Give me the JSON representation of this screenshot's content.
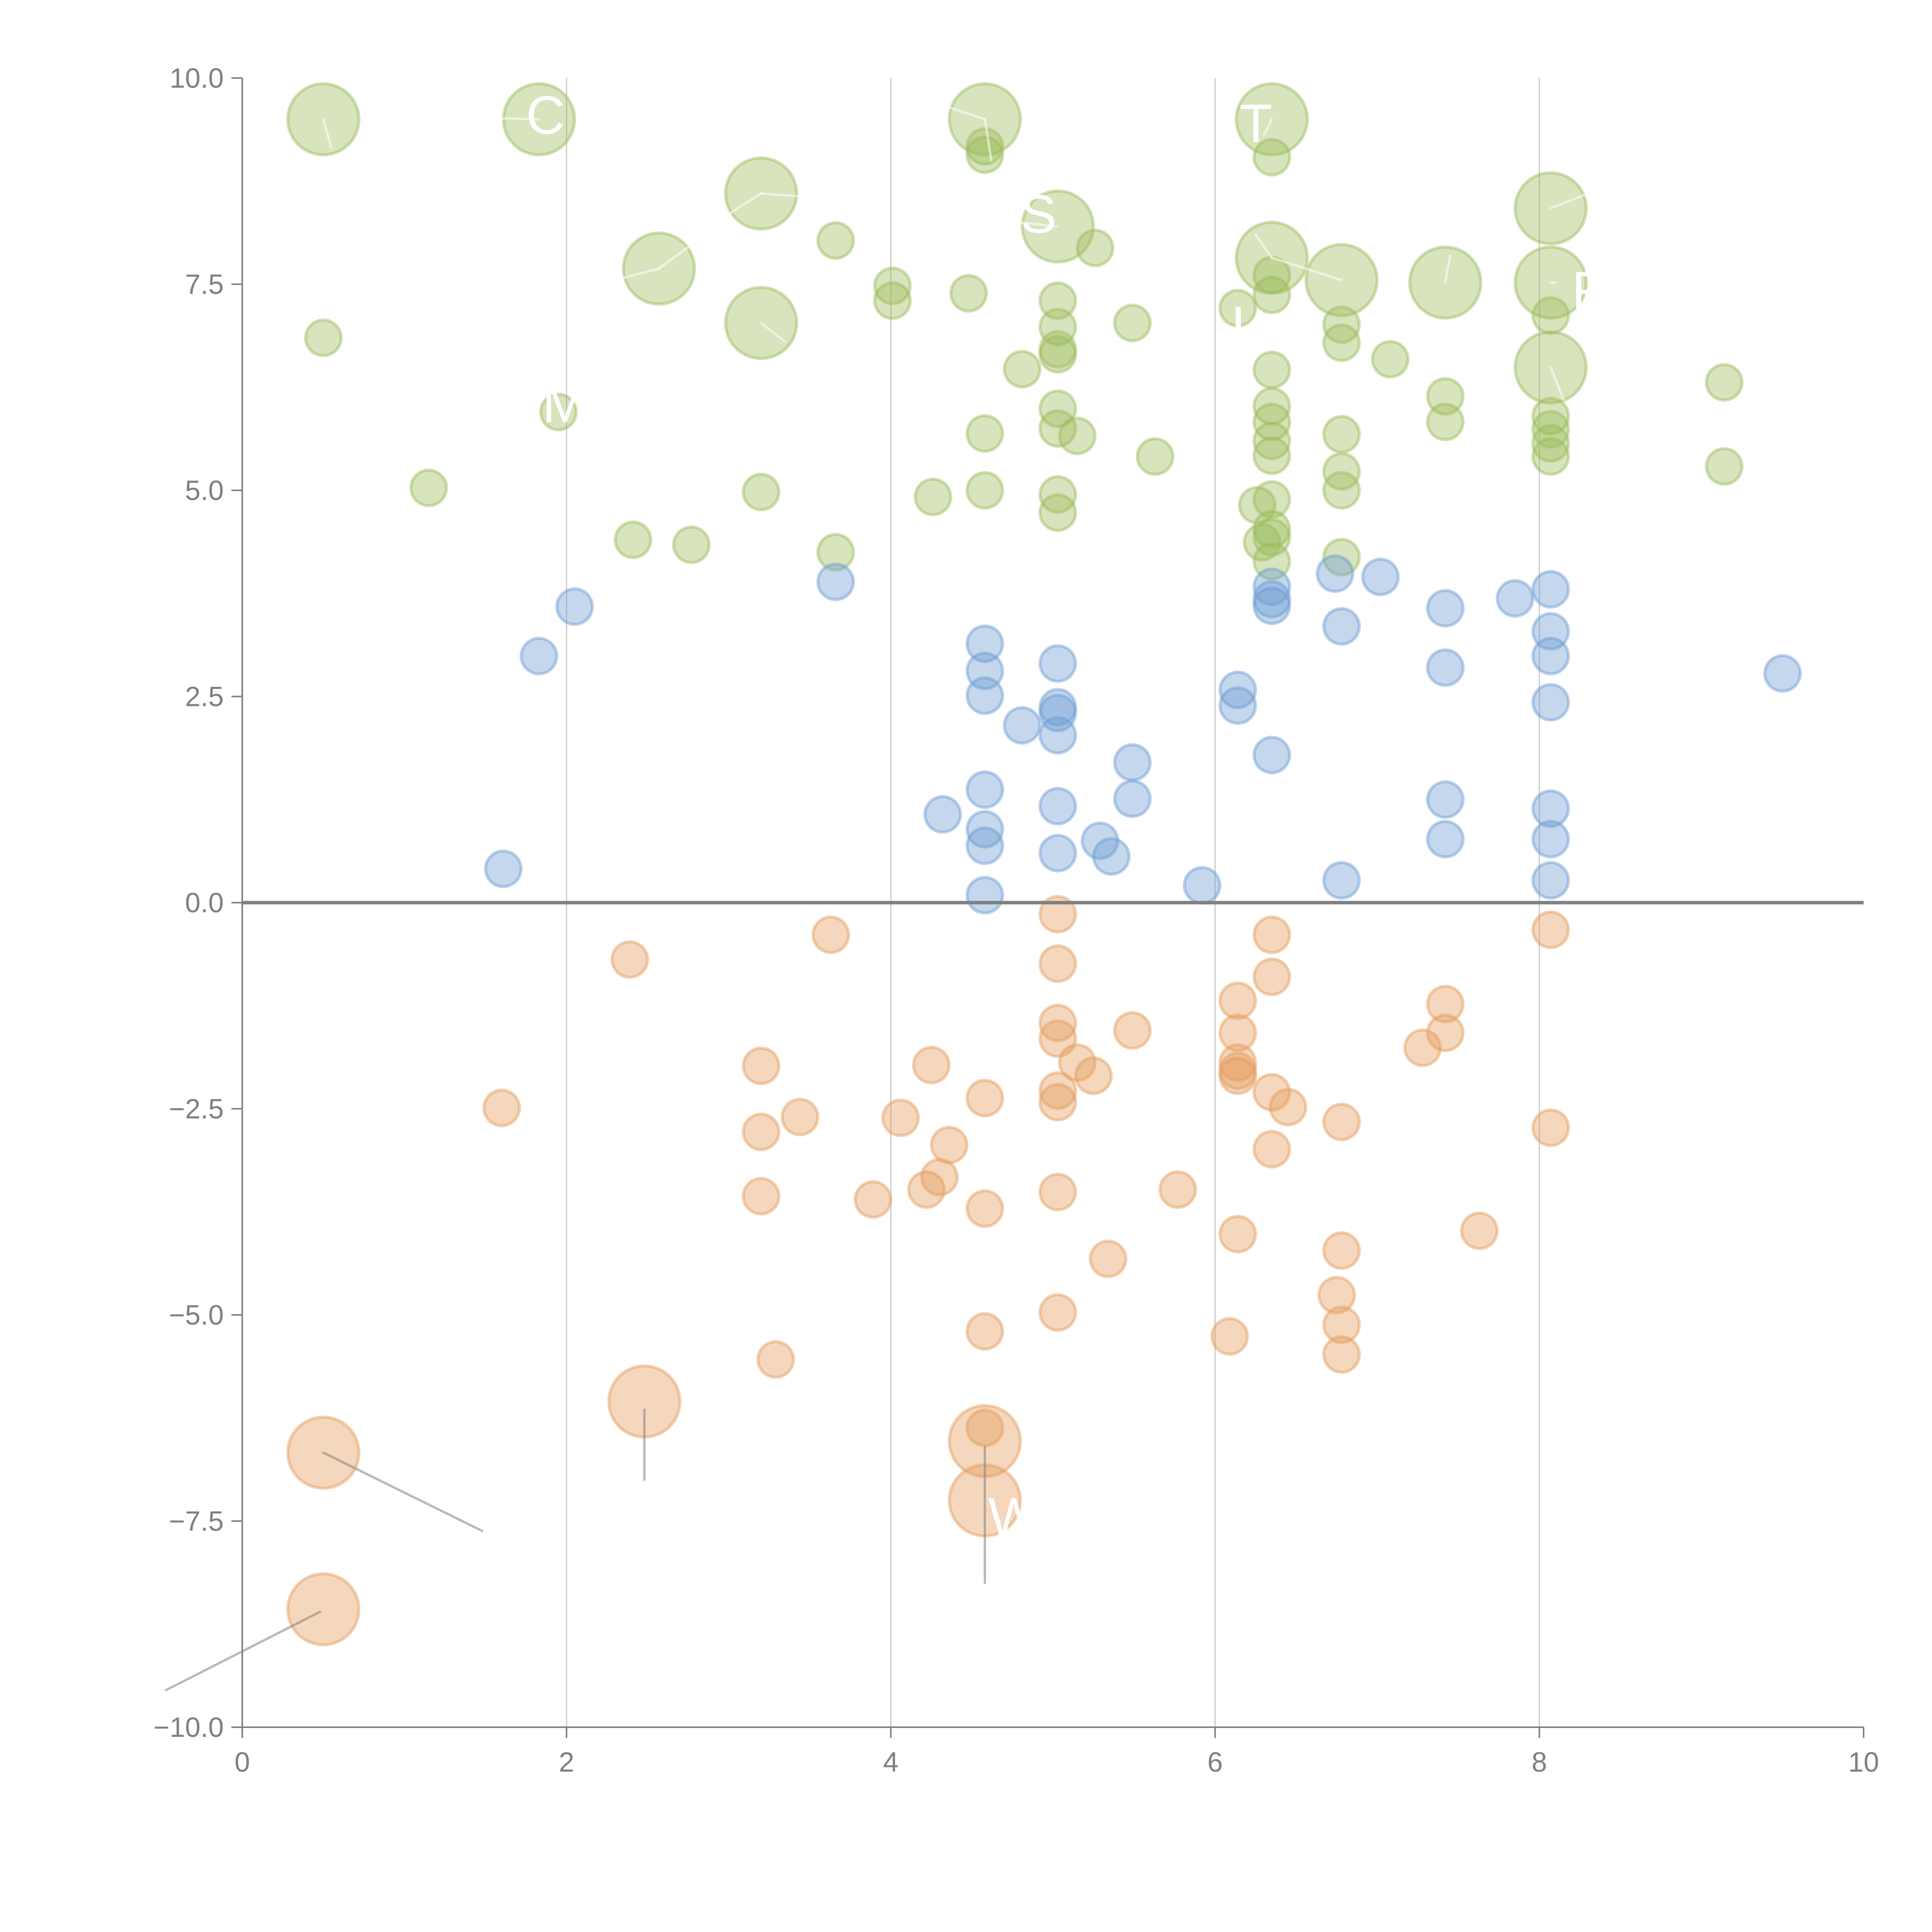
{
  "chart_data": {
    "type": "scatter",
    "title": "",
    "xlabel": "",
    "ylabel": "",
    "xlim": [
      0,
      10
    ],
    "ylim": [
      -10,
      10
    ],
    "x_ticks": [
      0,
      2,
      4,
      6,
      8,
      10
    ],
    "x_tick_labels": [
      "0",
      "2",
      "4",
      "6",
      "8",
      "10"
    ],
    "y_ticks": [
      10,
      7.5,
      5,
      2.5,
      0,
      -2.5,
      -5,
      -7.5,
      -10
    ],
    "y_tick_labels": [
      "10.0",
      "7.5",
      "5.0",
      "2.5",
      "0.0",
      "−2.5",
      "−5.0",
      "−7.5",
      "−10.0"
    ],
    "grid": {
      "vertical_at": [
        2,
        4,
        6,
        8
      ],
      "horizontal_reference": 0
    },
    "legend": "none",
    "series": [
      {
        "name": "green",
        "color": "#9bbb59",
        "points": [
          {
            "x": 0.5,
            "y": 9.5,
            "size": "large"
          },
          {
            "x": 1.83,
            "y": 9.5,
            "size": "large"
          },
          {
            "x": 4.58,
            "y": 9.5,
            "size": "large"
          },
          {
            "x": 6.35,
            "y": 9.5,
            "size": "large"
          },
          {
            "x": 3.2,
            "y": 8.6,
            "size": "large"
          },
          {
            "x": 5.03,
            "y": 8.2,
            "size": "large"
          },
          {
            "x": 8.07,
            "y": 8.42,
            "size": "large"
          },
          {
            "x": 2.57,
            "y": 7.69,
            "size": "large"
          },
          {
            "x": 6.35,
            "y": 7.82,
            "size": "large"
          },
          {
            "x": 6.78,
            "y": 7.55,
            "size": "large"
          },
          {
            "x": 7.42,
            "y": 7.52,
            "size": "large"
          },
          {
            "x": 8.07,
            "y": 7.52,
            "size": "large"
          },
          {
            "x": 3.2,
            "y": 7.03,
            "size": "large"
          },
          {
            "x": 8.07,
            "y": 6.49,
            "size": "large"
          },
          {
            "x": 0.5,
            "y": 6.85
          },
          {
            "x": 1.15,
            "y": 5.03
          },
          {
            "x": 1.95,
            "y": 5.95
          },
          {
            "x": 2.41,
            "y": 4.4
          },
          {
            "x": 2.77,
            "y": 4.34
          },
          {
            "x": 3.2,
            "y": 4.98
          },
          {
            "x": 3.66,
            "y": 8.03
          },
          {
            "x": 3.66,
            "y": 4.25
          },
          {
            "x": 4.01,
            "y": 7.48
          },
          {
            "x": 4.01,
            "y": 7.3
          },
          {
            "x": 4.26,
            "y": 4.92
          },
          {
            "x": 4.48,
            "y": 7.39
          },
          {
            "x": 4.58,
            "y": 9.17
          },
          {
            "x": 4.58,
            "y": 9.07
          },
          {
            "x": 4.58,
            "y": 5.69
          },
          {
            "x": 4.58,
            "y": 5.0
          },
          {
            "x": 4.81,
            "y": 6.47
          },
          {
            "x": 5.03,
            "y": 7.3
          },
          {
            "x": 5.03,
            "y": 6.98
          },
          {
            "x": 5.03,
            "y": 6.71
          },
          {
            "x": 5.03,
            "y": 6.65
          },
          {
            "x": 5.03,
            "y": 5.99
          },
          {
            "x": 5.03,
            "y": 5.75
          },
          {
            "x": 5.03,
            "y": 4.95
          },
          {
            "x": 5.03,
            "y": 4.73
          },
          {
            "x": 5.15,
            "y": 5.66
          },
          {
            "x": 5.26,
            "y": 7.94
          },
          {
            "x": 5.49,
            "y": 7.03
          },
          {
            "x": 5.63,
            "y": 5.41
          },
          {
            "x": 6.14,
            "y": 7.21
          },
          {
            "x": 6.26,
            "y": 4.82
          },
          {
            "x": 6.29,
            "y": 4.37
          },
          {
            "x": 6.35,
            "y": 9.04
          },
          {
            "x": 6.35,
            "y": 7.61
          },
          {
            "x": 6.35,
            "y": 7.37
          },
          {
            "x": 6.35,
            "y": 6.46
          },
          {
            "x": 6.35,
            "y": 6.02
          },
          {
            "x": 6.35,
            "y": 5.83
          },
          {
            "x": 6.35,
            "y": 5.6
          },
          {
            "x": 6.35,
            "y": 5.42
          },
          {
            "x": 6.35,
            "y": 4.89
          },
          {
            "x": 6.35,
            "y": 4.53
          },
          {
            "x": 6.35,
            "y": 4.43
          },
          {
            "x": 6.35,
            "y": 4.14
          },
          {
            "x": 6.78,
            "y": 7.01
          },
          {
            "x": 6.78,
            "y": 6.79
          },
          {
            "x": 6.78,
            "y": 5.68
          },
          {
            "x": 6.78,
            "y": 5.23
          },
          {
            "x": 6.78,
            "y": 5.0
          },
          {
            "x": 6.78,
            "y": 4.19
          },
          {
            "x": 7.08,
            "y": 6.59
          },
          {
            "x": 7.42,
            "y": 6.14
          },
          {
            "x": 7.42,
            "y": 5.83
          },
          {
            "x": 8.07,
            "y": 7.12
          },
          {
            "x": 8.07,
            "y": 5.9
          },
          {
            "x": 8.07,
            "y": 5.74
          },
          {
            "x": 8.07,
            "y": 5.57
          },
          {
            "x": 8.07,
            "y": 5.41
          },
          {
            "x": 9.14,
            "y": 6.31
          },
          {
            "x": 9.14,
            "y": 5.29
          }
        ]
      },
      {
        "name": "blue",
        "color": "#6c9bd2",
        "points": [
          {
            "x": 1.61,
            "y": 0.41
          },
          {
            "x": 1.83,
            "y": 2.99
          },
          {
            "x": 2.05,
            "y": 3.59
          },
          {
            "x": 3.66,
            "y": 3.89
          },
          {
            "x": 4.32,
            "y": 1.07
          },
          {
            "x": 4.58,
            "y": 3.14
          },
          {
            "x": 4.58,
            "y": 2.81
          },
          {
            "x": 4.58,
            "y": 2.51
          },
          {
            "x": 4.58,
            "y": 1.37
          },
          {
            "x": 4.58,
            "y": 0.89
          },
          {
            "x": 4.58,
            "y": 0.69
          },
          {
            "x": 4.58,
            "y": 0.09
          },
          {
            "x": 4.81,
            "y": 2.15
          },
          {
            "x": 5.03,
            "y": 2.9
          },
          {
            "x": 5.03,
            "y": 2.37
          },
          {
            "x": 5.03,
            "y": 2.3
          },
          {
            "x": 5.03,
            "y": 2.03
          },
          {
            "x": 5.03,
            "y": 1.17
          },
          {
            "x": 5.03,
            "y": 0.6
          },
          {
            "x": 5.29,
            "y": 0.75
          },
          {
            "x": 5.36,
            "y": 0.56
          },
          {
            "x": 5.49,
            "y": 1.7
          },
          {
            "x": 5.49,
            "y": 1.26
          },
          {
            "x": 5.92,
            "y": 0.21
          },
          {
            "x": 6.14,
            "y": 2.58
          },
          {
            "x": 6.14,
            "y": 2.39
          },
          {
            "x": 6.35,
            "y": 3.83
          },
          {
            "x": 6.35,
            "y": 3.68
          },
          {
            "x": 6.35,
            "y": 3.6
          },
          {
            "x": 6.35,
            "y": 1.79
          },
          {
            "x": 6.74,
            "y": 3.99
          },
          {
            "x": 6.78,
            "y": 3.35
          },
          {
            "x": 6.78,
            "y": 0.27
          },
          {
            "x": 7.02,
            "y": 3.95
          },
          {
            "x": 7.42,
            "y": 3.57
          },
          {
            "x": 7.42,
            "y": 2.85
          },
          {
            "x": 7.42,
            "y": 1.25
          },
          {
            "x": 7.42,
            "y": 0.77
          },
          {
            "x": 7.85,
            "y": 3.69
          },
          {
            "x": 8.07,
            "y": 3.8
          },
          {
            "x": 8.07,
            "y": 3.29
          },
          {
            "x": 8.07,
            "y": 2.99
          },
          {
            "x": 8.07,
            "y": 2.43
          },
          {
            "x": 8.07,
            "y": 1.14
          },
          {
            "x": 8.07,
            "y": 0.77
          },
          {
            "x": 8.07,
            "y": 0.27
          },
          {
            "x": 9.5,
            "y": 2.78
          }
        ]
      },
      {
        "name": "orange",
        "color": "#e49b5b",
        "points": [
          {
            "x": 0.5,
            "y": -6.67,
            "size": "large"
          },
          {
            "x": 2.48,
            "y": -6.05,
            "size": "large"
          },
          {
            "x": 4.58,
            "y": -6.53,
            "size": "large"
          },
          {
            "x": 4.58,
            "y": -7.25,
            "size": "large"
          },
          {
            "x": 0.5,
            "y": -8.57,
            "size": "large"
          },
          {
            "x": 1.6,
            "y": -2.49
          },
          {
            "x": 2.39,
            "y": -0.69
          },
          {
            "x": 3.2,
            "y": -1.98
          },
          {
            "x": 3.2,
            "y": -2.78
          },
          {
            "x": 3.2,
            "y": -3.56
          },
          {
            "x": 3.29,
            "y": -5.54
          },
          {
            "x": 3.44,
            "y": -2.6
          },
          {
            "x": 3.63,
            "y": -0.39
          },
          {
            "x": 3.89,
            "y": -3.6
          },
          {
            "x": 4.06,
            "y": -2.61
          },
          {
            "x": 4.22,
            "y": -3.48
          },
          {
            "x": 4.25,
            "y": -1.97
          },
          {
            "x": 4.3,
            "y": -3.33
          },
          {
            "x": 4.36,
            "y": -2.94
          },
          {
            "x": 4.58,
            "y": -2.37
          },
          {
            "x": 4.58,
            "y": -3.71
          },
          {
            "x": 4.58,
            "y": -5.2
          },
          {
            "x": 4.58,
            "y": -6.37
          },
          {
            "x": 5.03,
            "y": -0.14
          },
          {
            "x": 5.03,
            "y": -0.74
          },
          {
            "x": 5.03,
            "y": -1.46
          },
          {
            "x": 5.03,
            "y": -1.65
          },
          {
            "x": 5.03,
            "y": -2.28
          },
          {
            "x": 5.03,
            "y": -2.42
          },
          {
            "x": 5.03,
            "y": -3.51
          },
          {
            "x": 5.03,
            "y": -4.97
          },
          {
            "x": 5.15,
            "y": -1.94
          },
          {
            "x": 5.25,
            "y": -2.1
          },
          {
            "x": 5.34,
            "y": -4.32
          },
          {
            "x": 5.49,
            "y": -1.55
          },
          {
            "x": 5.77,
            "y": -3.48
          },
          {
            "x": 6.09,
            "y": -5.26
          },
          {
            "x": 6.14,
            "y": -1.19
          },
          {
            "x": 6.14,
            "y": -1.58
          },
          {
            "x": 6.14,
            "y": -1.94
          },
          {
            "x": 6.14,
            "y": -2.04
          },
          {
            "x": 6.14,
            "y": -2.1
          },
          {
            "x": 6.14,
            "y": -4.02
          },
          {
            "x": 6.35,
            "y": -0.39
          },
          {
            "x": 6.35,
            "y": -0.9
          },
          {
            "x": 6.35,
            "y": -2.3
          },
          {
            "x": 6.35,
            "y": -2.99
          },
          {
            "x": 6.45,
            "y": -2.48
          },
          {
            "x": 6.78,
            "y": -2.66
          },
          {
            "x": 6.78,
            "y": -4.22
          },
          {
            "x": 6.75,
            "y": -4.76
          },
          {
            "x": 6.78,
            "y": -5.12
          },
          {
            "x": 6.78,
            "y": -5.48
          },
          {
            "x": 7.28,
            "y": -1.76
          },
          {
            "x": 7.42,
            "y": -1.23
          },
          {
            "x": 7.42,
            "y": -1.58
          },
          {
            "x": 7.63,
            "y": -3.98
          },
          {
            "x": 8.07,
            "y": -0.33
          },
          {
            "x": 8.07,
            "y": -2.73
          }
        ]
      }
    ],
    "annotations": [
      {
        "text": "C",
        "x": 1.75,
        "y": 9.55,
        "leader": {
          "x1": 1.83,
          "y1": 9.5,
          "x2": 1.45,
          "y2": 9.52,
          "tone": "light"
        }
      },
      {
        "text": "Mi",
        "x": 1.85,
        "y": 6.05,
        "leader": null
      },
      {
        "text": "S",
        "x": 4.8,
        "y": 8.35,
        "leader": {
          "x1": 5.03,
          "y1": 8.2,
          "x2": 4.8,
          "y2": 8.25,
          "tone": "light"
        }
      },
      {
        "text": "T",
        "x": 6.15,
        "y": 9.45,
        "leader": {
          "x1": 6.35,
          "y1": 9.5,
          "x2": 6.3,
          "y2": 9.3,
          "tone": "light"
        }
      },
      {
        "text": "R",
        "x": 8.2,
        "y": 7.42,
        "leader": {
          "x1": 8.07,
          "y1": 7.52,
          "x2": 8.1,
          "y2": 7.52,
          "tone": "light"
        }
      },
      {
        "text": "W",
        "x": 4.6,
        "y": -7.45,
        "leader": {
          "x1": 4.58,
          "y1": -6.6,
          "x2": 4.58,
          "y2": -8.25,
          "tone": "dark"
        }
      },
      {
        "text": "L",
        "x": 6.1,
        "y": 7.0,
        "leader": null
      }
    ],
    "leaders_extra": [
      {
        "x1": 0.5,
        "y1": 9.5,
        "x2": 0.55,
        "y2": 9.15,
        "tone": "light"
      },
      {
        "x1": 4.58,
        "y1": 9.5,
        "x2": 4.2,
        "y2": 9.75,
        "tone": "light"
      },
      {
        "x1": 4.58,
        "y1": 9.5,
        "x2": 4.62,
        "y2": 9.0,
        "tone": "light"
      },
      {
        "x1": 3.2,
        "y1": 8.6,
        "x2": 3.55,
        "y2": 8.55,
        "tone": "light"
      },
      {
        "x1": 3.2,
        "y1": 8.6,
        "x2": 3.0,
        "y2": 8.35,
        "tone": "light"
      },
      {
        "x1": 2.57,
        "y1": 7.69,
        "x2": 2.3,
        "y2": 7.55,
        "tone": "light"
      },
      {
        "x1": 2.57,
        "y1": 7.69,
        "x2": 2.75,
        "y2": 7.95,
        "tone": "light"
      },
      {
        "x1": 3.2,
        "y1": 7.03,
        "x2": 3.35,
        "y2": 6.8,
        "tone": "light"
      },
      {
        "x1": 8.07,
        "y1": 8.42,
        "x2": 8.3,
        "y2": 8.6,
        "tone": "light"
      },
      {
        "x1": 6.35,
        "y1": 7.82,
        "x2": 6.25,
        "y2": 8.1,
        "tone": "light"
      },
      {
        "x1": 6.35,
        "y1": 7.82,
        "x2": 6.78,
        "y2": 7.55,
        "tone": "light"
      },
      {
        "x1": 7.42,
        "y1": 7.52,
        "x2": 7.45,
        "y2": 7.85,
        "tone": "light"
      },
      {
        "x1": 8.07,
        "y1": 6.49,
        "x2": 8.15,
        "y2": 6.1,
        "tone": "light"
      },
      {
        "x1": 0.5,
        "y1": -6.67,
        "x2": 1.48,
        "y2": -7.62,
        "tone": "dark"
      },
      {
        "x1": 2.48,
        "y1": -6.15,
        "x2": 2.48,
        "y2": -7.0,
        "tone": "dark"
      },
      {
        "x1": 0.48,
        "y1": -8.6,
        "x2": -0.47,
        "y2": -9.55,
        "tone": "dark"
      }
    ]
  }
}
